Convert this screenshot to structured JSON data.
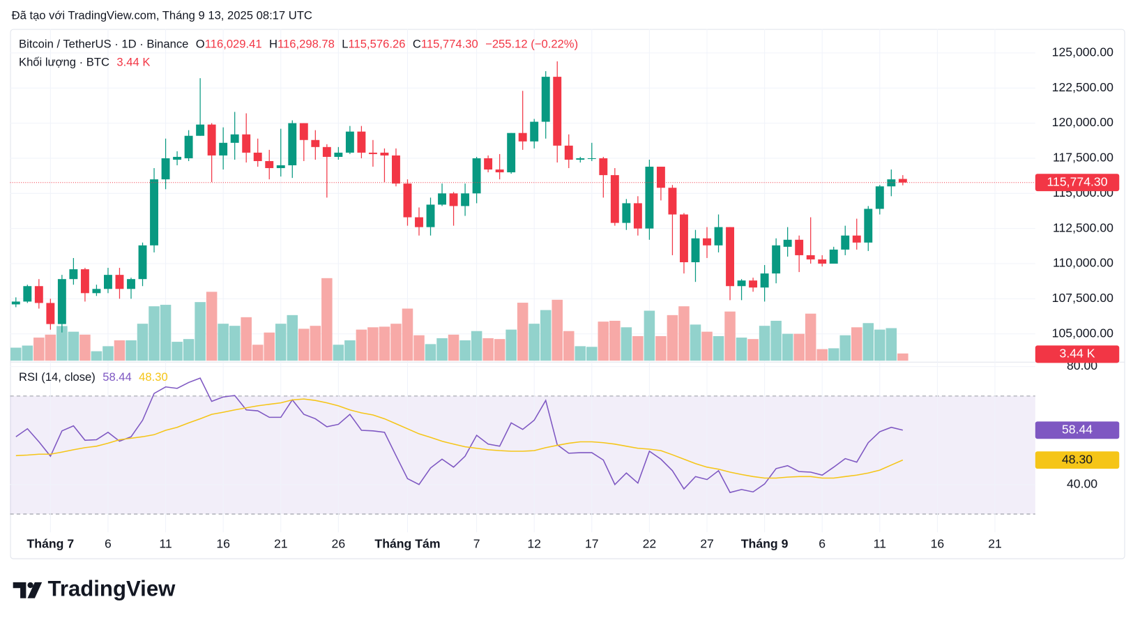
{
  "header": "Đã tạo với TradingView.com, Tháng 9 13, 2025 08:17 UTC",
  "logo": "TradingView",
  "chart_data": {
    "type": "candlestick",
    "symbol": "Bitcoin / TetherUS · 1D · Binance",
    "categories": [
      null,
      null,
      null,
      "Tháng 7",
      null,
      null,
      null,
      null,
      "6",
      null,
      null,
      null,
      null,
      "11",
      null,
      null,
      null,
      null,
      "16",
      null,
      null,
      null,
      null,
      "21",
      null,
      null,
      null,
      null,
      "26",
      null,
      null,
      null,
      null,
      null,
      "Tháng Tám",
      null,
      null,
      null,
      null,
      null,
      "7",
      null,
      null,
      null,
      null,
      "12",
      null,
      null,
      null,
      null,
      "17",
      null,
      null,
      null,
      null,
      "22",
      null,
      null,
      null,
      null,
      "27",
      null,
      null,
      null,
      null,
      "Tháng 9",
      null,
      null,
      null,
      null,
      "6",
      null,
      null,
      null,
      null,
      "11",
      null,
      null,
      null,
      null,
      "16",
      null,
      null,
      null,
      null,
      "21",
      null,
      null,
      null
    ],
    "open": [
      107100,
      107300,
      108400,
      107200,
      105700,
      108900,
      109600,
      107900,
      108200,
      109200,
      108200,
      108900,
      111300,
      116000,
      117400,
      117500,
      119100,
      119900,
      117700,
      118600,
      119200,
      117900,
      117300,
      116800,
      117000,
      120000,
      118800,
      118300,
      117600,
      117900,
      119400,
      117900,
      117900,
      117700,
      115700,
      113300,
      112600,
      114200,
      115000,
      114100,
      115000,
      117500,
      116700,
      116500,
      119300,
      118700,
      120100,
      123300,
      118400,
      117400,
      117500,
      117500,
      116300,
      112900,
      114300,
      112500,
      116900,
      115400,
      113500,
      110100,
      111800,
      111300,
      112600,
      108400,
      108800,
      108300,
      109300,
      111200,
      111700,
      110600,
      110300,
      110000,
      111000,
      112000,
      111500,
      113900,
      115500,
      116029.41,
      null,
      null,
      null,
      null,
      null,
      null,
      null,
      null,
      null,
      null,
      null
    ],
    "high": [
      107600,
      108500,
      108900,
      107500,
      109200,
      110400,
      109700,
      108500,
      109700,
      109700,
      109000,
      111500,
      116800,
      118900,
      118000,
      119500,
      123200,
      120000,
      119700,
      120800,
      120700,
      118900,
      118100,
      119600,
      120200,
      120000,
      119500,
      118500,
      118300,
      119800,
      119800,
      118800,
      118200,
      118200,
      116000,
      114000,
      114700,
      115700,
      115100,
      115700,
      117600,
      117700,
      117800,
      119300,
      122300,
      120300,
      123700,
      124400,
      119200,
      117600,
      118600,
      117600,
      116800,
      114600,
      114800,
      117400,
      116900,
      115600,
      113600,
      112400,
      112600,
      113500,
      112600,
      108900,
      109000,
      109900,
      111800,
      112600,
      112000,
      113300,
      110600,
      111200,
      112700,
      113200,
      114100,
      115600,
      116700,
      116298.78,
      null,
      null,
      null,
      null,
      null,
      null,
      null,
      null,
      null,
      null,
      null
    ],
    "low": [
      106900,
      107200,
      106800,
      105300,
      105100,
      108500,
      107300,
      107700,
      107900,
      107500,
      107500,
      108400,
      110800,
      115300,
      117000,
      117300,
      119100,
      115800,
      116700,
      117400,
      117200,
      116900,
      116000,
      116200,
      116100,
      117300,
      117400,
      114700,
      117400,
      117800,
      117500,
      116900,
      115800,
      115500,
      112700,
      112000,
      112000,
      114100,
      112700,
      113400,
      114300,
      116500,
      116000,
      116400,
      118100,
      118200,
      118900,
      117200,
      116800,
      117200,
      117300,
      114700,
      112700,
      112400,
      112000,
      111700,
      114500,
      110600,
      109300,
      108700,
      110400,
      110800,
      107400,
      107400,
      108000,
      107300,
      108600,
      110500,
      109400,
      110000,
      109800,
      110000,
      110600,
      111000,
      110900,
      113500,
      114800,
      115576.26,
      null,
      null,
      null,
      null,
      null,
      null,
      null,
      null,
      null,
      null,
      null
    ],
    "close": [
      107300,
      108400,
      107200,
      105700,
      108900,
      109600,
      107900,
      108200,
      109200,
      108200,
      108900,
      111300,
      116000,
      117500,
      117600,
      119100,
      119900,
      117700,
      118600,
      119200,
      117900,
      117300,
      116800,
      117000,
      120000,
      118800,
      118300,
      117600,
      117900,
      119400,
      117900,
      117800,
      117700,
      115700,
      113300,
      112600,
      114200,
      115000,
      114100,
      115000,
      117500,
      116700,
      116500,
      119300,
      118700,
      120100,
      123300,
      118400,
      117400,
      117500,
      117500,
      116300,
      112900,
      114300,
      112500,
      116900,
      115400,
      113500,
      110100,
      111800,
      111300,
      112600,
      108400,
      108800,
      108300,
      109300,
      111300,
      111700,
      110600,
      110300,
      110000,
      111000,
      112000,
      111500,
      113900,
      115500,
      116000,
      115774.3,
      null,
      null,
      null,
      null,
      null,
      null,
      null,
      null,
      null,
      null,
      null
    ],
    "up_color": "#089981",
    "down_color": "#f23645",
    "ohlc_legend": [
      {
        "key": "O",
        "text": "116,029.41"
      },
      {
        "key": "H",
        "text": "116,298.78"
      },
      {
        "key": "L",
        "text": "115,576.26"
      },
      {
        "key": "C",
        "text": "115,774.30"
      }
    ],
    "change_label": "−255.12 (−0.22%)",
    "last_price_label": "115,774.30",
    "ylim": [
      103040,
      126700
    ],
    "yticks": [
      {
        "value": 105000,
        "label": "105,000.00"
      },
      {
        "value": 107500,
        "label": "107,500.00"
      },
      {
        "value": 110000,
        "label": "110,000.00"
      },
      {
        "value": 112500,
        "label": "112,500.00"
      },
      {
        "value": 115000,
        "label": "115,000.00"
      },
      {
        "value": 117500,
        "label": "117,500.00"
      },
      {
        "value": 120000,
        "label": "120,000.00"
      },
      {
        "value": 122500,
        "label": "122,500.00"
      },
      {
        "value": 125000,
        "label": "125,000.00"
      }
    ],
    "grid": true,
    "volume": {
      "title": "Khối lượng · BTC",
      "last_label": "3.44 K",
      "up_color": "#92d2cc",
      "down_color": "#f7a9a7",
      "values": [
        6.2,
        7.2,
        11,
        12.4,
        16.5,
        13.8,
        12.4,
        4.5,
        6.9,
        9.7,
        9.7,
        17.6,
        25.9,
        26.6,
        9,
        10.3,
        27.9,
        32.8,
        17.6,
        16.6,
        20.7,
        7.6,
        13.4,
        17.6,
        21.7,
        15.2,
        16.6,
        39.3,
        7.6,
        9.7,
        14.8,
        15.9,
        16.2,
        17.6,
        24.8,
        12.1,
        7.9,
        10.7,
        12.4,
        9.7,
        14.1,
        10.7,
        10.3,
        14.8,
        27.6,
        17.6,
        24.1,
        29,
        14.1,
        6.9,
        6.6,
        18.6,
        19,
        15.9,
        11.7,
        23.8,
        11.7,
        21.7,
        25.9,
        17.2,
        13.8,
        11.7,
        23.4,
        11,
        10.3,
        16.6,
        19,
        12.8,
        12.8,
        22.4,
        5.5,
        5.9,
        12.1,
        15.9,
        17.9,
        14.8,
        15.5,
        3.44,
        null,
        null,
        null,
        null,
        null,
        null,
        null,
        null,
        null,
        null,
        null
      ]
    },
    "rsi": {
      "title": "RSI (14, close)",
      "ylim": [
        23.8,
        81.5
      ],
      "yticks": [
        {
          "value": 40,
          "label": "40.00"
        },
        {
          "value": 80,
          "label": "80.00"
        }
      ],
      "band": [
        30,
        70
      ],
      "band_color": "#7e57c2",
      "series": [
        {
          "color": "#7e57c2",
          "last_label": "58.44",
          "values": [
            56.2,
            58.9,
            54.5,
            49.6,
            58.2,
            59.9,
            55,
            55.2,
            57.7,
            54.7,
            56.2,
            61.8,
            70.9,
            73.1,
            72.6,
            74.6,
            76.1,
            68.2,
            69.7,
            70.2,
            65.3,
            65,
            62.8,
            62.8,
            68.7,
            63.8,
            62.3,
            59.6,
            60.4,
            63.8,
            58.4,
            58.2,
            57.7,
            49.8,
            42,
            40,
            45.6,
            48.6,
            45.9,
            49.6,
            56.7,
            53.7,
            53,
            60.9,
            58.7,
            61.8,
            68.5,
            53.5,
            50.6,
            50.8,
            50.8,
            48.3,
            40,
            43.9,
            40.5,
            51.3,
            48.6,
            44.7,
            38.5,
            42.7,
            41.7,
            44.7,
            37.3,
            38.3,
            37.5,
            40.2,
            45.4,
            46.4,
            44.4,
            44.2,
            43.2,
            45.9,
            48.8,
            47.6,
            54.2,
            57.9,
            59.4,
            58.44,
            null,
            null,
            null,
            null,
            null,
            null,
            null,
            null,
            null,
            null,
            null
          ]
        },
        {
          "color": "#f5c518",
          "last_label": "48.30",
          "values": [
            49.8,
            50,
            50.3,
            50.3,
            51,
            51.8,
            52.5,
            53,
            54,
            55.2,
            55.7,
            56.2,
            56.9,
            58.4,
            59.4,
            60.9,
            62.3,
            63.8,
            64.5,
            65.3,
            66,
            66.7,
            67.2,
            67.7,
            68.7,
            69,
            68.5,
            67.7,
            66.7,
            65.3,
            64.3,
            63.6,
            62.3,
            60.6,
            58.9,
            57.2,
            56,
            54.7,
            53.7,
            52.8,
            52.3,
            51.8,
            51.5,
            51.3,
            51.3,
            51.5,
            52.5,
            53.3,
            54,
            54.5,
            54.5,
            54.2,
            53.7,
            53,
            52.3,
            52,
            51.5,
            50.1,
            48.6,
            47.1,
            45.9,
            45.2,
            44.2,
            43.4,
            42.7,
            42.2,
            42.2,
            42.5,
            42.7,
            42.7,
            42.2,
            42.2,
            42.7,
            43.2,
            43.9,
            44.9,
            46.6,
            48.3,
            null,
            null,
            null,
            null,
            null,
            null,
            null,
            null,
            null,
            null,
            null
          ]
        }
      ]
    }
  }
}
